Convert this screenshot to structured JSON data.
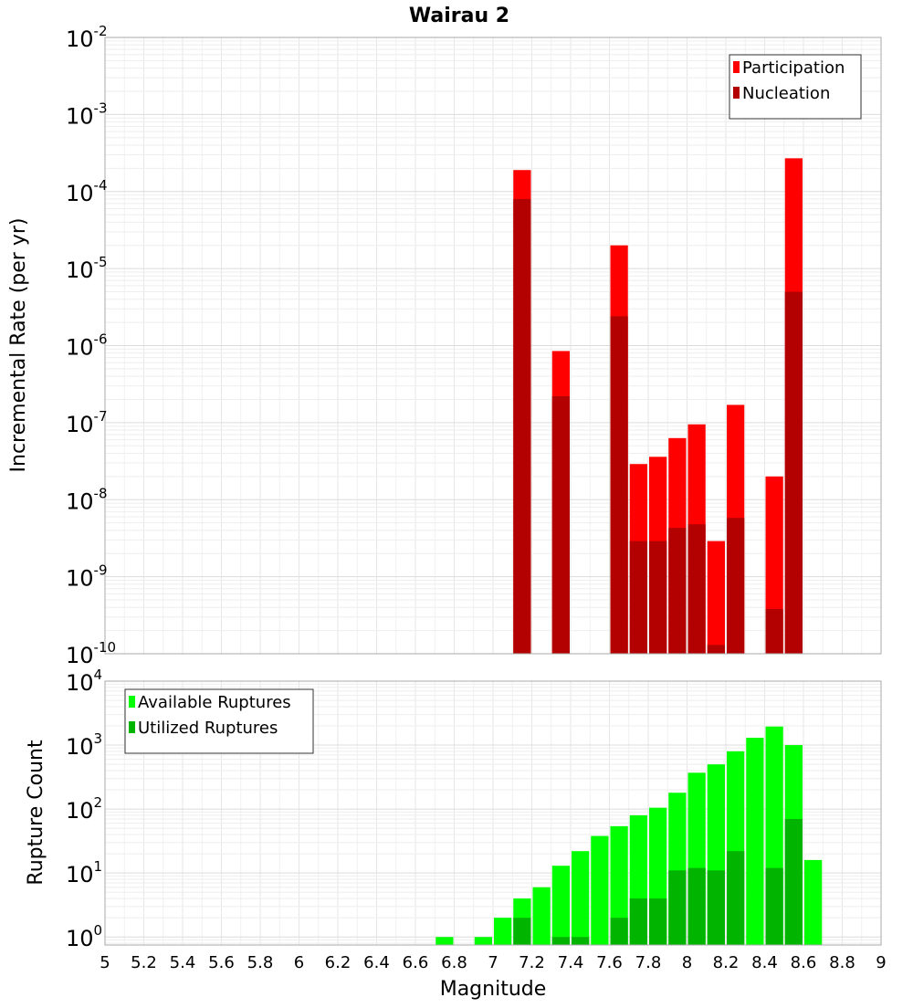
{
  "chart_data": {
    "title": "Wairau 2",
    "xlabel": "Magnitude",
    "xlim": [
      5,
      9
    ],
    "x_ticks": [
      "5",
      "5.2",
      "5.4",
      "5.6",
      "5.8",
      "6",
      "6.2",
      "6.4",
      "6.6",
      "6.8",
      "7",
      "7.2",
      "7.4",
      "7.6",
      "7.8",
      "8",
      "8.2",
      "8.4",
      "8.6",
      "8.8",
      "9"
    ],
    "bin_width": 0.1,
    "panels": [
      {
        "type": "bar",
        "ylabel": "Incremental Rate (per yr)",
        "yscale": "log",
        "ylim": [
          1e-10,
          0.01
        ],
        "y_tick_exponents": [
          -10,
          -9,
          -8,
          -7,
          -6,
          -5,
          -4,
          -3,
          -2
        ],
        "legend_position": "top-right",
        "grid": true,
        "series": [
          {
            "name": "Participation",
            "color": "#ff0000",
            "x": [
              7.15,
              7.35,
              7.65,
              7.75,
              7.85,
              7.95,
              8.05,
              8.15,
              8.25,
              8.45,
              8.55
            ],
            "values": [
              0.00019,
              8.5e-07,
              2e-05,
              2.9e-08,
              3.6e-08,
              6.3e-08,
              9.5e-08,
              2.9e-09,
              1.7e-07,
              2e-08,
              0.00027
            ]
          },
          {
            "name": "Nucleation",
            "color": "#b30000",
            "x": [
              7.15,
              7.35,
              7.65,
              7.75,
              7.85,
              7.95,
              8.05,
              8.15,
              8.25,
              8.45,
              8.55
            ],
            "values": [
              8e-05,
              2.2e-07,
              2.4e-06,
              2.9e-09,
              2.9e-09,
              4.3e-09,
              4.8e-09,
              1.3e-10,
              5.8e-09,
              3.8e-10,
              5e-06
            ]
          }
        ]
      },
      {
        "type": "bar",
        "ylabel": "Rupture Count",
        "yscale": "log",
        "ylim": [
          0.75,
          10000
        ],
        "y_tick_exponents": [
          0,
          1,
          2,
          3,
          4
        ],
        "legend_position": "top-left",
        "grid": true,
        "series": [
          {
            "name": "Available Ruptures",
            "color": "#00ff00",
            "x": [
              6.75,
              6.95,
              7.05,
              7.15,
              7.25,
              7.35,
              7.45,
              7.55,
              7.65,
              7.75,
              7.85,
              7.95,
              8.05,
              8.15,
              8.25,
              8.35,
              8.45,
              8.55,
              8.65
            ],
            "values": [
              1,
              1,
              2,
              4,
              6,
              13,
              22,
              38,
              54,
              80,
              105,
              180,
              370,
              500,
              800,
              1300,
              1950,
              1000,
              16
            ]
          },
          {
            "name": "Utilized Ruptures",
            "color": "#00b400",
            "x": [
              7.15,
              7.35,
              7.45,
              7.65,
              7.75,
              7.85,
              7.95,
              8.05,
              8.15,
              8.25,
              8.45,
              8.55
            ],
            "values": [
              2,
              1,
              1,
              2,
              4,
              4,
              11,
              12,
              11,
              22,
              12,
              70
            ]
          }
        ]
      }
    ]
  }
}
